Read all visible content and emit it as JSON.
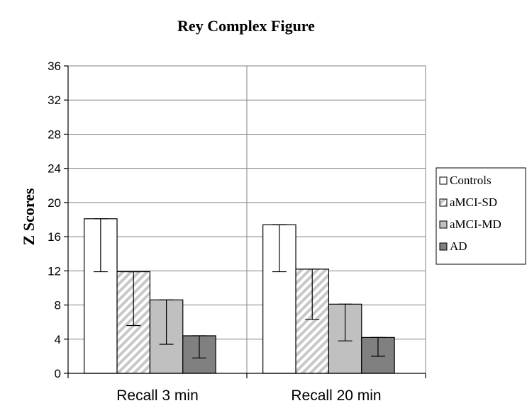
{
  "chart_data": {
    "type": "bar",
    "title": "Rey Complex Figure",
    "ylabel": "Z Scores",
    "xlabel": "",
    "ylim": [
      0,
      36
    ],
    "yticks": [
      0,
      4,
      8,
      12,
      16,
      20,
      24,
      28,
      32,
      36
    ],
    "grid": "horizontal",
    "legend_position": "right",
    "categories": [
      "Recall 3 min",
      "Recall 20 min"
    ],
    "series": [
      {
        "name": "Controls",
        "values": [
          18.1,
          17.4
        ],
        "error_low": [
          11.9,
          11.9
        ],
        "error_high": [
          18.1,
          17.4
        ],
        "fill": "#ffffff",
        "pattern": "solid"
      },
      {
        "name": "aMCI-SD",
        "values": [
          11.9,
          12.2
        ],
        "error_low": [
          5.6,
          6.3
        ],
        "error_high": [
          11.9,
          12.2
        ],
        "fill": "#ffffff",
        "pattern": "hatch"
      },
      {
        "name": "aMCI-MD",
        "values": [
          8.6,
          8.1
        ],
        "error_low": [
          3.4,
          3.8
        ],
        "error_high": [
          8.6,
          8.1
        ],
        "fill": "#c0c0c0",
        "pattern": "solid"
      },
      {
        "name": "AD",
        "values": [
          4.4,
          4.2
        ],
        "error_low": [
          1.8,
          2.0
        ],
        "error_high": [
          4.4,
          4.2
        ],
        "fill": "#808080",
        "pattern": "solid"
      }
    ]
  }
}
